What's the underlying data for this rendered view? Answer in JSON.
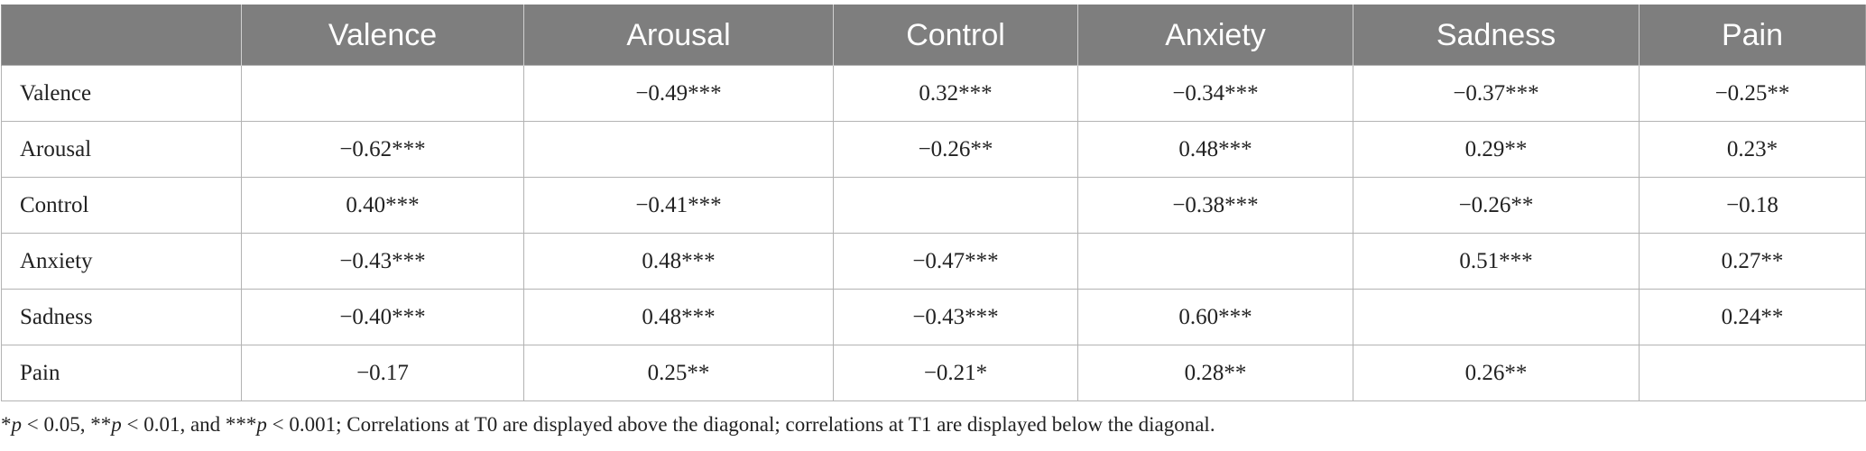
{
  "table": {
    "columns": [
      "",
      "Valence",
      "Arousal",
      "Control",
      "Anxiety",
      "Sadness",
      "Pain"
    ],
    "rows": [
      {
        "label": "Valence",
        "cells": [
          "",
          "−0.49***",
          "0.32***",
          "−0.34***",
          "−0.37***",
          "−0.25**"
        ]
      },
      {
        "label": "Arousal",
        "cells": [
          "−0.62***",
          "",
          "−0.26**",
          "0.48***",
          "0.29**",
          "0.23*"
        ]
      },
      {
        "label": "Control",
        "cells": [
          "0.40***",
          "−0.41***",
          "",
          "−0.38***",
          "−0.26**",
          "−0.18"
        ]
      },
      {
        "label": "Anxiety",
        "cells": [
          "−0.43***",
          "0.48***",
          "−0.47***",
          "",
          "0.51***",
          "0.27**"
        ]
      },
      {
        "label": "Sadness",
        "cells": [
          "−0.40***",
          "0.48***",
          "−0.43***",
          "0.60***",
          "",
          "0.24**"
        ]
      },
      {
        "label": "Pain",
        "cells": [
          "−0.17",
          "0.25**",
          "−0.21*",
          "0.28**",
          "0.26**",
          ""
        ]
      }
    ]
  },
  "footnote": {
    "p_symbol": "p",
    "part1": "*",
    "part2": " < 0.05, **",
    "part3": " < 0.01, and ***",
    "part4": " < 0.001; Correlations at T0 are displayed above the diagonal; correlations at T1 are displayed below the diagonal."
  },
  "colors": {
    "header_bg": "#7e7e7e",
    "header_text": "#ffffff",
    "grid": "#b3b3b3",
    "text": "#222222"
  }
}
